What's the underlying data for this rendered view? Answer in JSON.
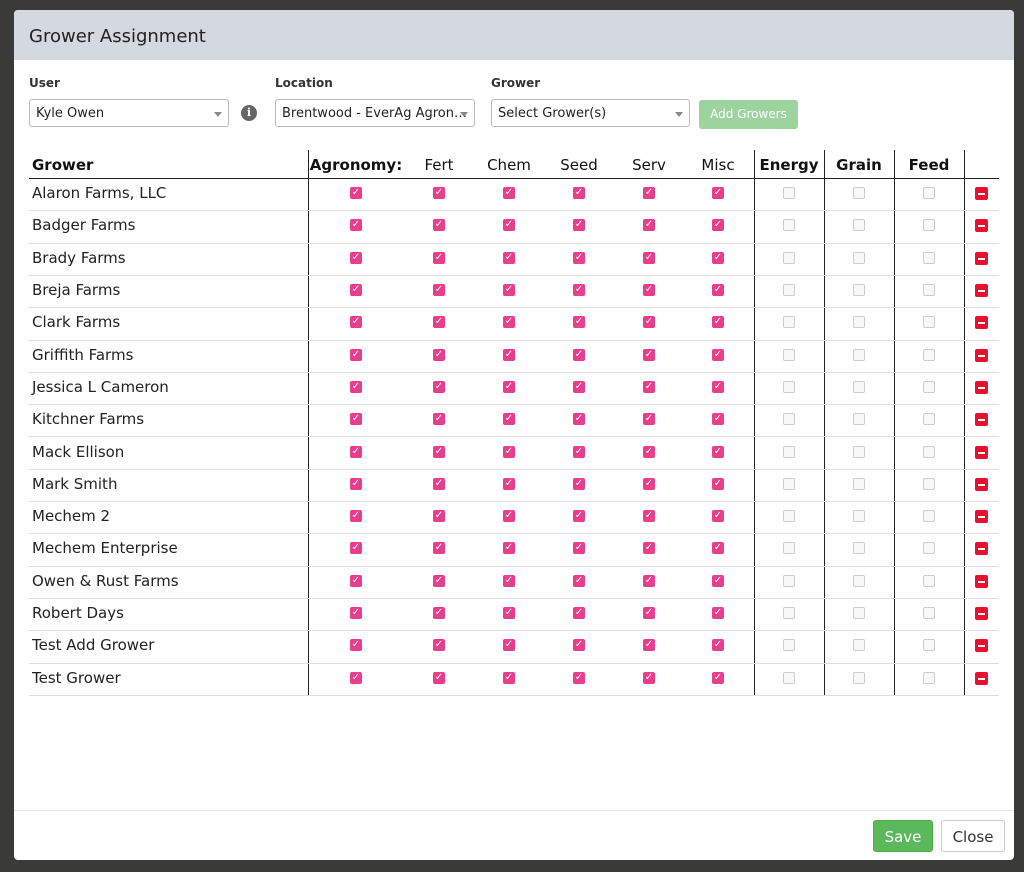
{
  "header": {
    "title": "Grower Assignment"
  },
  "filters": [
    {
      "label": "User",
      "value": "Kyle Owen"
    },
    {
      "label": "Location",
      "value": "Brentwood - EverAg Agron…"
    },
    {
      "label": "Grower",
      "value": "Select Grower(s)"
    }
  ],
  "add_button": "Add Growers",
  "table": {
    "columns": [
      {
        "label": "Grower",
        "bold": true
      },
      {
        "label": "Agronomy:",
        "bold": true,
        "checked": true
      },
      {
        "label": "Fert",
        "bold": false,
        "checked": true
      },
      {
        "label": "Chem",
        "bold": false,
        "checked": true
      },
      {
        "label": "Seed",
        "bold": false,
        "checked": true
      },
      {
        "label": "Serv",
        "bold": false,
        "checked": true
      },
      {
        "label": "Misc",
        "bold": false,
        "checked": true
      },
      {
        "label": "Energy",
        "bold": true,
        "checked": false
      },
      {
        "label": "Grain",
        "bold": true,
        "checked": false
      },
      {
        "label": "Feed",
        "bold": true,
        "checked": false
      }
    ],
    "rows": [
      "Alaron Farms, LLC",
      "Badger Farms",
      "Brady Farms",
      "Breja Farms",
      "Clark Farms",
      "Griffith Farms",
      "Jessica L Cameron",
      "Kitchner Farms",
      "Mack Ellison",
      "Mark Smith",
      "Mechem 2",
      "Mechem Enterprise",
      "Owen & Rust Farms",
      "Robert Days",
      "Test Add Grower",
      "Test Grower"
    ]
  },
  "footer": {
    "buttons": [
      "Save",
      "Close"
    ]
  }
}
